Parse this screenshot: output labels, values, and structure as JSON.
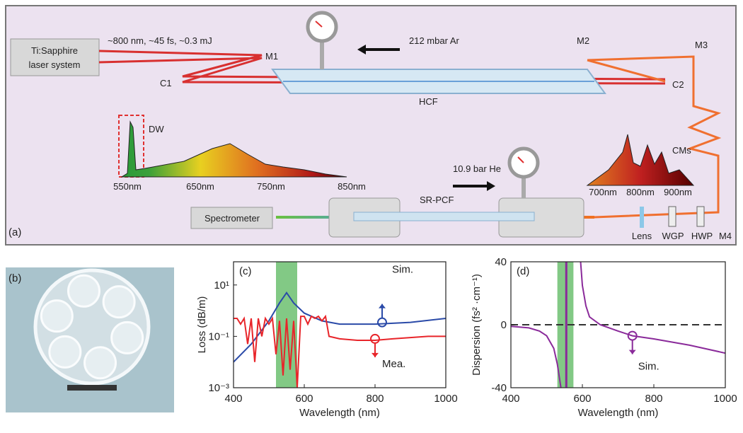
{
  "panel_a": {
    "label": "(a)",
    "laser": [
      "Ti:Sapphire",
      "laser system"
    ],
    "pulse": "~800 nm, ~45 fs, ~0.3 mJ",
    "m1": "M1",
    "c1": "C1",
    "gas1": "212 mbar Ar",
    "hcf": "HCF",
    "m2": "M2",
    "m3": "M3",
    "c2": "C2",
    "cms": "CMs",
    "dw": "DW",
    "spec1_ticks": [
      "550nm",
      "650nm",
      "750nm",
      "850nm"
    ],
    "gas2": "10.9 bar He",
    "pcf": "SR-PCF",
    "spec2_ticks": [
      "700nm",
      "800nm",
      "900nm"
    ],
    "spectrometer": "Spectrometer",
    "lens": "Lens",
    "wgp": "WGP",
    "hwp": "HWP",
    "m4": "M4"
  },
  "panel_b": {
    "label": "(b)"
  },
  "chart_data": [
    {
      "type": "line",
      "panel_label": "(c)",
      "xlabel": "Wavelength (nm)",
      "ylabel": "Loss (dB/m)",
      "xlim": [
        400,
        1000
      ],
      "xticks": [
        400,
        600,
        800,
        1000
      ],
      "ylim": [
        0.001,
        80
      ],
      "ylog": true,
      "yticks": [
        {
          "value": 10,
          "label": "10¹"
        },
        {
          "value": 0.1,
          "label": "10⁻¹"
        },
        {
          "value": 0.001,
          "label": "10⁻³"
        }
      ],
      "band": [
        520,
        580
      ],
      "band_color": "#6cc070",
      "series": [
        {
          "name": "Sim.",
          "color": "#2a4aa8",
          "x": [
            400,
            450,
            500,
            530,
            550,
            570,
            600,
            650,
            700,
            800,
            900,
            1000
          ],
          "values": [
            0.01,
            0.05,
            0.4,
            2,
            5,
            2,
            0.8,
            0.4,
            0.3,
            0.3,
            0.35,
            0.5
          ],
          "marker": [
            820,
            0.35
          ]
        },
        {
          "name": "Mea.",
          "color": "#e8252a",
          "x": [
            400,
            410,
            420,
            430,
            440,
            450,
            460,
            470,
            480,
            490,
            500,
            510,
            520,
            530,
            540,
            550,
            560,
            570,
            580,
            590,
            600,
            610,
            620,
            630,
            640,
            650,
            660,
            670,
            700,
            750,
            800,
            850,
            900,
            950,
            1000
          ],
          "values": [
            0.5,
            0.5,
            0.3,
            0.5,
            0.05,
            0.5,
            0.01,
            0.5,
            0.1,
            0.5,
            0.3,
            0.5,
            0.02,
            0.4,
            0.003,
            0.5,
            0.005,
            0.4,
            0.001,
            0.6,
            0.6,
            0.3,
            0.6,
            0.5,
            0.6,
            0.4,
            0.6,
            0.1,
            0.08,
            0.07,
            0.07,
            0.08,
            0.09,
            0.1,
            0.1
          ],
          "marker": [
            800,
            0.08
          ]
        }
      ]
    },
    {
      "type": "line",
      "panel_label": "(d)",
      "xlabel": "Wavelength (nm)",
      "ylabel": "Dispersion (fs² ·cm⁻¹)",
      "xlim": [
        400,
        1000
      ],
      "xticks": [
        400,
        600,
        800,
        1000
      ],
      "ylim": [
        -40,
        40
      ],
      "yticks": [
        -40,
        0,
        40
      ],
      "zero_line": true,
      "band": [
        530,
        575
      ],
      "band_color": "#6cc070",
      "vline": 555,
      "series": [
        {
          "name": "Sim.",
          "color": "#8a2a9a",
          "x": [
            400,
            450,
            480,
            500,
            520,
            530,
            540,
            545,
            595,
            600,
            610,
            620,
            650,
            700,
            740,
            800,
            900,
            1000
          ],
          "values": [
            -1,
            -2,
            -4,
            -7,
            -15,
            -25,
            -40,
            null,
            40,
            25,
            12,
            5,
            0,
            -4,
            -7,
            -9,
            -13,
            -18
          ],
          "marker": [
            740,
            -7
          ]
        }
      ]
    }
  ]
}
